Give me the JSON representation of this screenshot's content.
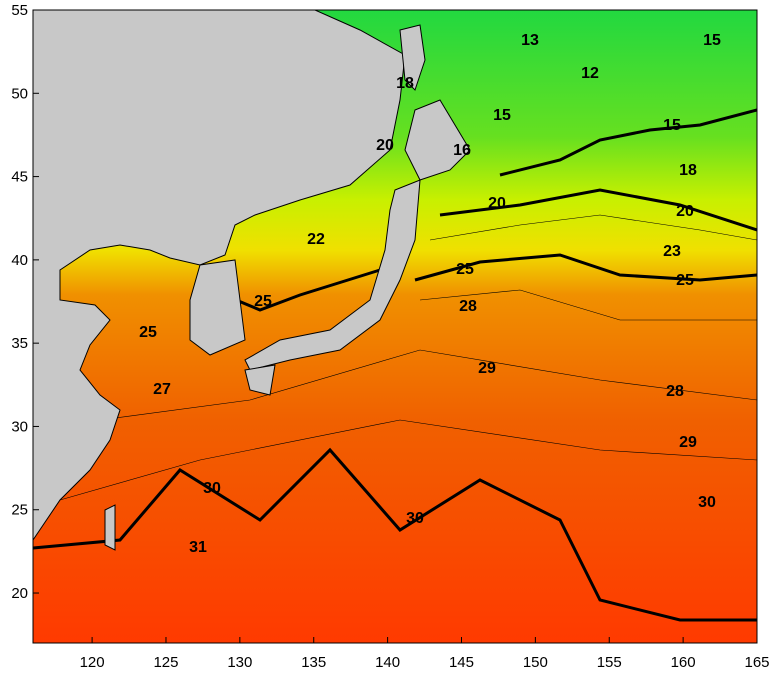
{
  "map": {
    "xlim": [
      116,
      165
    ],
    "ylim": [
      17,
      55
    ],
    "xticks": [
      120,
      125,
      130,
      135,
      140,
      145,
      150,
      155,
      160,
      165
    ],
    "yticks": [
      20,
      25,
      30,
      35,
      40,
      45,
      50,
      55
    ],
    "contour_labels": [
      13,
      15,
      12,
      15,
      18,
      16,
      15,
      18,
      20,
      20,
      22,
      20,
      23,
      25,
      25,
      25,
      25,
      28,
      29,
      27,
      28,
      29,
      30,
      30,
      30,
      31
    ]
  }
}
